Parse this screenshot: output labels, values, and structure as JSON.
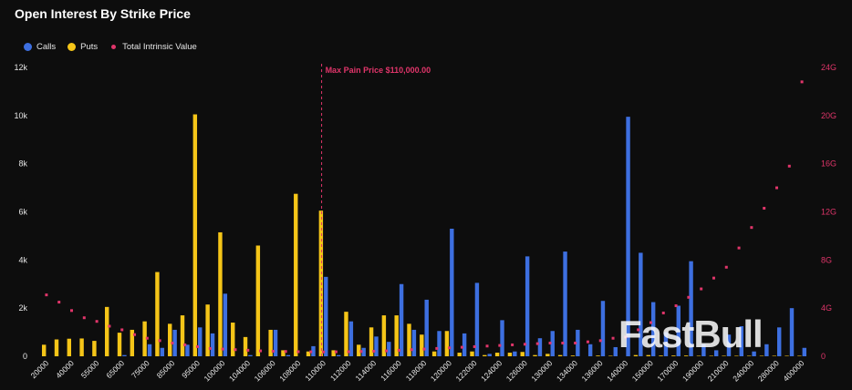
{
  "chart_data": {
    "type": "bar",
    "title": "Open Interest By Strike Price",
    "legend_placement": "top-left",
    "grid": false,
    "categories": [
      "20000",
      "30000",
      "40000",
      "50000",
      "55000",
      "60000",
      "65000",
      "70000",
      "75000",
      "80000",
      "85000",
      "90000",
      "95000",
      "98000",
      "100000",
      "102000",
      "104000",
      "105000",
      "106000",
      "107000",
      "108000",
      "109000",
      "110000",
      "111000",
      "112000",
      "113000",
      "114000",
      "115000",
      "116000",
      "117000",
      "118000",
      "119000",
      "120000",
      "121000",
      "122000",
      "123000",
      "124000",
      "125000",
      "126000",
      "128000",
      "130000",
      "132000",
      "134000",
      "135000",
      "136000",
      "138000",
      "140000",
      "145000",
      "150000",
      "160000",
      "170000",
      "180000",
      "190000",
      "200000",
      "210000",
      "220000",
      "240000",
      "260000",
      "280000",
      "300000",
      "400000"
    ],
    "x_tick_labels": [
      "20000",
      "40000",
      "55000",
      "65000",
      "75000",
      "85000",
      "95000",
      "100000",
      "104000",
      "106000",
      "108000",
      "110000",
      "112000",
      "114000",
      "116000",
      "118000",
      "120000",
      "122000",
      "124000",
      "126000",
      "130000",
      "134000",
      "136000",
      "140000",
      "150000",
      "170000",
      "190000",
      "210000",
      "240000",
      "280000",
      "400000"
    ],
    "ylim_left": [
      0,
      12000
    ],
    "left_ticks": [
      "0",
      "2k",
      "4k",
      "6k",
      "8k",
      "10k",
      "12k"
    ],
    "ylim_right": [
      0,
      24
    ],
    "right_ticks": [
      "0",
      "4G",
      "8G",
      "12G",
      "16G",
      "20G",
      "24G"
    ],
    "series": [
      {
        "name": "Calls",
        "color": "#3d6fe0",
        "values": [
          0,
          0,
          0,
          0,
          0,
          0,
          50,
          0,
          500,
          350,
          1100,
          480,
          1200,
          950,
          2600,
          0,
          50,
          0,
          1100,
          50,
          0,
          420,
          3300,
          50,
          1450,
          350,
          820,
          600,
          3000,
          1100,
          2350,
          1050,
          5300,
          950,
          3050,
          100,
          1500,
          200,
          4150,
          750,
          1050,
          4350,
          1100,
          500,
          2300,
          380,
          9950,
          4300,
          2250,
          1000,
          2100,
          3950,
          500,
          250,
          900,
          1250,
          200,
          500,
          1200,
          2000,
          350
        ]
      },
      {
        "name": "Puts",
        "color": "#f5c518",
        "values": [
          480,
          700,
          730,
          740,
          640,
          2050,
          980,
          1100,
          1450,
          3500,
          1350,
          1700,
          10050,
          2150,
          5150,
          1400,
          800,
          4600,
          1100,
          250,
          6750,
          200,
          6050,
          250,
          1850,
          480,
          1200,
          1700,
          1700,
          1350,
          900,
          200,
          1050,
          150,
          200,
          50,
          150,
          150,
          180,
          50,
          100,
          50,
          30,
          0,
          30,
          20,
          0,
          50,
          50,
          30,
          30,
          30,
          20,
          20,
          20,
          20,
          20,
          20,
          20,
          20,
          20
        ]
      },
      {
        "name": "Total Intrinsic Value",
        "color": "#e0356a",
        "units": "G",
        "values": [
          5.1,
          4.5,
          3.8,
          3.2,
          2.9,
          2.5,
          2.2,
          1.8,
          1.5,
          1.3,
          1.1,
          0.95,
          0.8,
          0.65,
          0.6,
          0.55,
          0.5,
          0.45,
          0.42,
          0.4,
          0.38,
          0.37,
          0.36,
          0.37,
          0.38,
          0.4,
          0.42,
          0.45,
          0.5,
          0.55,
          0.6,
          0.65,
          0.7,
          0.75,
          0.8,
          0.85,
          0.9,
          0.95,
          1.0,
          1.05,
          1.1,
          1.1,
          1.1,
          1.2,
          1.3,
          1.5,
          1.6,
          2.2,
          2.8,
          3.6,
          4.2,
          4.9,
          5.6,
          6.5,
          7.4,
          9.0,
          10.7,
          12.3,
          14.0,
          15.8,
          22.8
        ]
      }
    ],
    "annotation": {
      "label": "Max Pain Price $110,000.00",
      "category": "110000"
    }
  },
  "watermark": "FastBull"
}
